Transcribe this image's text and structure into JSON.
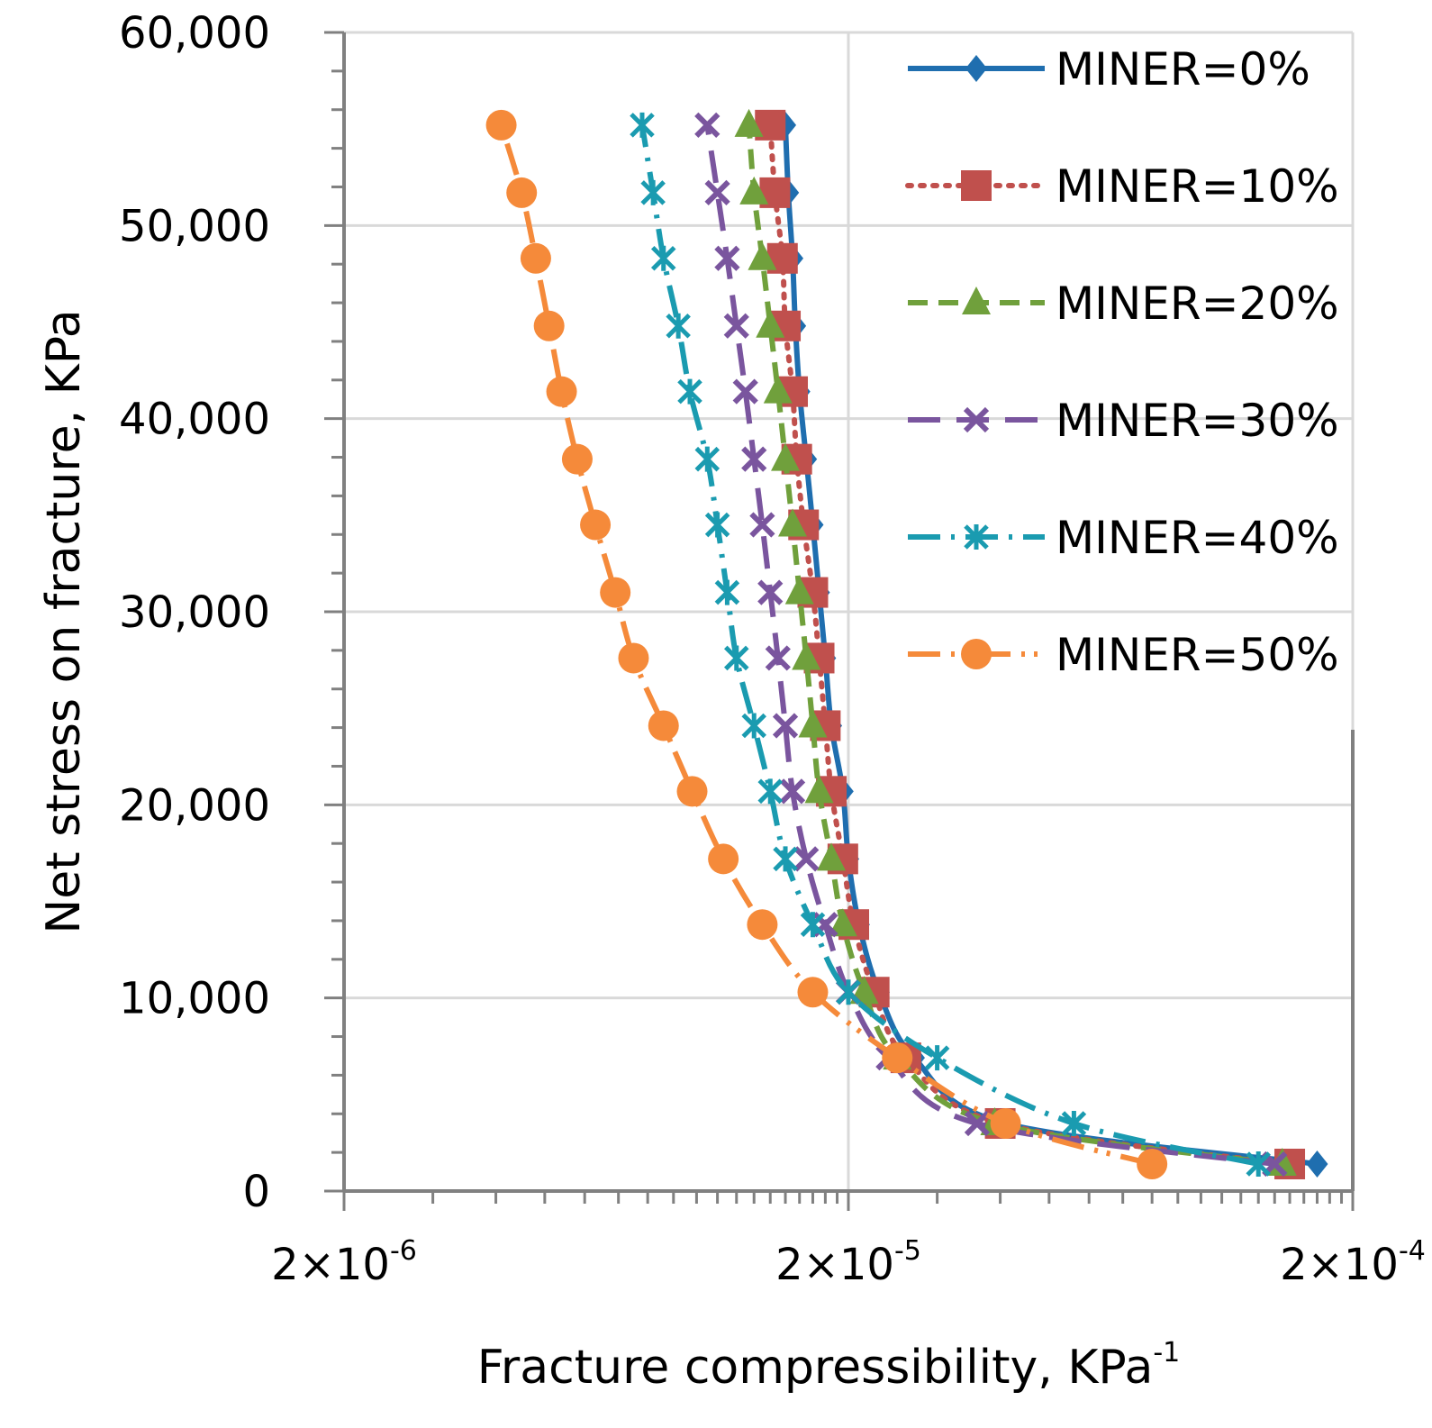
{
  "chart_data": {
    "type": "line",
    "title": "",
    "xlabel": "Fracture  compressibility,  KPa",
    "xlabel_superscript": "-1",
    "ylabel": "Net  stress  on  fracture,  KPa",
    "x_scale": "log",
    "xlim": [
      2e-06,
      0.0002
    ],
    "ylim": [
      0,
      60000
    ],
    "x_ticks": [
      {
        "value": 2e-06,
        "base": "2×10",
        "exp": "-6"
      },
      {
        "value": 2e-05,
        "base": "2×10",
        "exp": "-5"
      },
      {
        "value": 0.0002,
        "base": "2×10",
        "exp": "-4"
      }
    ],
    "y_ticks": [
      {
        "value": 0,
        "label": "0"
      },
      {
        "value": 10000,
        "label": "10,000"
      },
      {
        "value": 20000,
        "label": "20,000"
      },
      {
        "value": 30000,
        "label": "30,000"
      },
      {
        "value": 40000,
        "label": "40,000"
      },
      {
        "value": 50000,
        "label": "50,000"
      },
      {
        "value": 60000,
        "label": "60,000"
      }
    ],
    "grid": true,
    "legend_position": "top-right",
    "series": [
      {
        "name": "MINER=0%",
        "color": "#1F6EAF",
        "marker": "diamond",
        "dash": "solid",
        "points": [
          [
            0.00017,
            1400
          ],
          [
            4.1e-05,
            3500
          ],
          [
            2.7e-05,
            6900
          ],
          [
            2.3e-05,
            10300
          ],
          [
            2.1e-05,
            13800
          ],
          [
            2e-05,
            17200
          ],
          [
            1.95e-05,
            20700
          ],
          [
            1.85e-05,
            24100
          ],
          [
            1.8e-05,
            27600
          ],
          [
            1.75e-05,
            31000
          ],
          [
            1.7e-05,
            34500
          ],
          [
            1.65e-05,
            37900
          ],
          [
            1.6e-05,
            41400
          ],
          [
            1.57e-05,
            44800
          ],
          [
            1.55e-05,
            48300
          ],
          [
            1.52e-05,
            51700
          ],
          [
            1.5e-05,
            55200
          ]
        ]
      },
      {
        "name": "MINER=10%",
        "color": "#C0504D",
        "marker": "square",
        "dash": "dot",
        "points": [
          [
            0.00015,
            1400
          ],
          [
            4e-05,
            3500
          ],
          [
            2.6e-05,
            6900
          ],
          [
            2.25e-05,
            10300
          ],
          [
            2.05e-05,
            13800
          ],
          [
            1.95e-05,
            17200
          ],
          [
            1.85e-05,
            20700
          ],
          [
            1.8e-05,
            24100
          ],
          [
            1.75e-05,
            27600
          ],
          [
            1.7e-05,
            31000
          ],
          [
            1.63e-05,
            34500
          ],
          [
            1.58e-05,
            37900
          ],
          [
            1.55e-05,
            41400
          ],
          [
            1.5e-05,
            44800
          ],
          [
            1.48e-05,
            48300
          ],
          [
            1.43e-05,
            51700
          ],
          [
            1.4e-05,
            55200
          ]
        ]
      },
      {
        "name": "MINER=20%",
        "color": "#70A03C",
        "marker": "triangle",
        "dash": "dash",
        "points": [
          [
            0.000145,
            1400
          ],
          [
            3.9e-05,
            3500
          ],
          [
            2.5e-05,
            6900
          ],
          [
            2.15e-05,
            10300
          ],
          [
            1.95e-05,
            13800
          ],
          [
            1.85e-05,
            17200
          ],
          [
            1.75e-05,
            20700
          ],
          [
            1.7e-05,
            24100
          ],
          [
            1.65e-05,
            27600
          ],
          [
            1.6e-05,
            31000
          ],
          [
            1.55e-05,
            34500
          ],
          [
            1.5e-05,
            37900
          ],
          [
            1.45e-05,
            41400
          ],
          [
            1.4e-05,
            44800
          ],
          [
            1.35e-05,
            48300
          ],
          [
            1.3e-05,
            51700
          ],
          [
            1.27e-05,
            55200
          ]
        ]
      },
      {
        "name": "MINER=30%",
        "color": "#7A559E",
        "marker": "x",
        "dash": "longdash",
        "points": [
          [
            0.00014,
            1400
          ],
          [
            3.6e-05,
            3500
          ],
          [
            2.4e-05,
            6900
          ],
          [
            2e-05,
            10300
          ],
          [
            1.8e-05,
            13800
          ],
          [
            1.65e-05,
            17200
          ],
          [
            1.55e-05,
            20700
          ],
          [
            1.5e-05,
            24100
          ],
          [
            1.45e-05,
            27600
          ],
          [
            1.4e-05,
            31000
          ],
          [
            1.35e-05,
            34500
          ],
          [
            1.3e-05,
            37900
          ],
          [
            1.25e-05,
            41400
          ],
          [
            1.2e-05,
            44800
          ],
          [
            1.15e-05,
            48300
          ],
          [
            1.1e-05,
            51700
          ],
          [
            1.05e-05,
            55200
          ]
        ]
      },
      {
        "name": "MINER=40%",
        "color": "#1A9BB0",
        "marker": "asterisk",
        "dash": "dashdot",
        "points": [
          [
            0.00013,
            1400
          ],
          [
            5.6e-05,
            3500
          ],
          [
            3e-05,
            6900
          ],
          [
            2e-05,
            10300
          ],
          [
            1.7e-05,
            13800
          ],
          [
            1.5e-05,
            17200
          ],
          [
            1.4e-05,
            20700
          ],
          [
            1.3e-05,
            24100
          ],
          [
            1.2e-05,
            27600
          ],
          [
            1.15e-05,
            31000
          ],
          [
            1.1e-05,
            34500
          ],
          [
            1.05e-05,
            37900
          ],
          [
            9.7e-06,
            41400
          ],
          [
            9.2e-06,
            44800
          ],
          [
            8.6e-06,
            48300
          ],
          [
            8.2e-06,
            51700
          ],
          [
            7.8e-06,
            55200
          ]
        ]
      },
      {
        "name": "MINER=50%",
        "color": "#F58A3A",
        "marker": "circle",
        "dash": "dashdotdot",
        "points": [
          [
            8e-05,
            1400
          ],
          [
            4.1e-05,
            3500
          ],
          [
            2.5e-05,
            6900
          ],
          [
            1.7e-05,
            10300
          ],
          [
            1.35e-05,
            13800
          ],
          [
            1.13e-05,
            17200
          ],
          [
            9.8e-06,
            20700
          ],
          [
            8.6e-06,
            24100
          ],
          [
            7.5e-06,
            27600
          ],
          [
            6.9e-06,
            31000
          ],
          [
            6.3e-06,
            34500
          ],
          [
            5.8e-06,
            37900
          ],
          [
            5.4e-06,
            41400
          ],
          [
            5.1e-06,
            44800
          ],
          [
            4.8e-06,
            48300
          ],
          [
            4.5e-06,
            51700
          ],
          [
            4.1e-06,
            55200
          ]
        ]
      }
    ]
  }
}
